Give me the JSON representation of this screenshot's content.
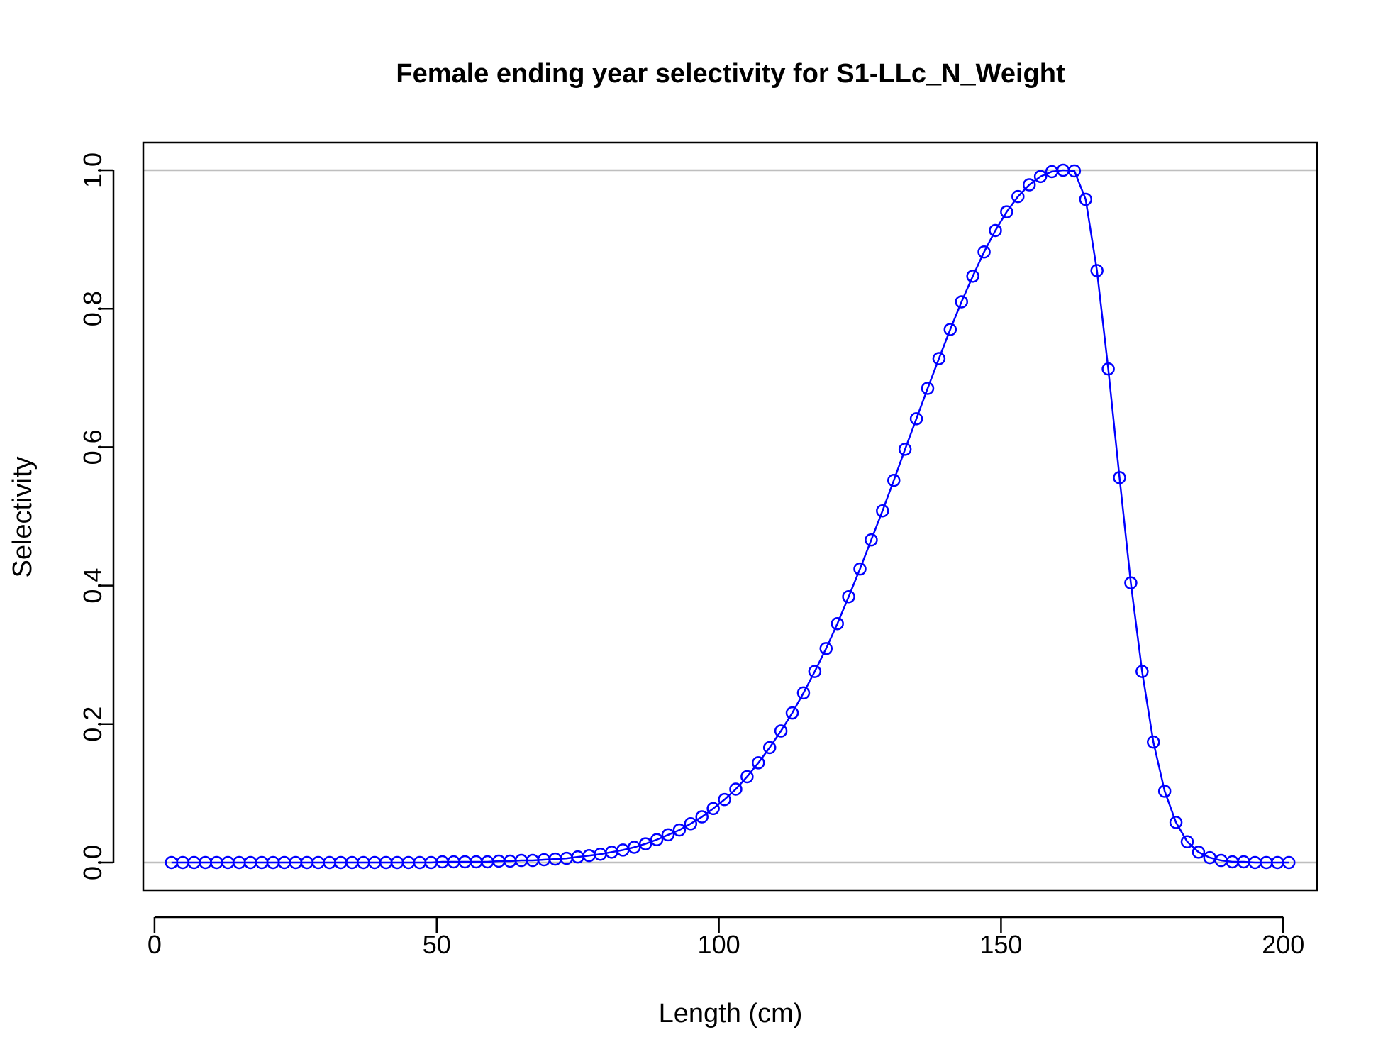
{
  "chart_data": {
    "type": "line",
    "title": "Female ending year selectivity for S1-LLc_N_Weight",
    "xlabel": "Length (cm)",
    "ylabel": "Selectivity",
    "xlim": [
      -2,
      206
    ],
    "ylim": [
      -0.04,
      1.04
    ],
    "xticks": [
      "0",
      "50",
      "100",
      "150",
      "200"
    ],
    "xtick_values": [
      0,
      50,
      100,
      150,
      200
    ],
    "yticks": [
      "0.0",
      "0.2",
      "0.4",
      "0.6",
      "0.8",
      "1.0"
    ],
    "ytick_values": [
      0,
      0.2,
      0.4,
      0.6,
      0.8,
      1.0
    ],
    "reference_lines": [
      0,
      1
    ],
    "line_color": "#0000ff",
    "reference_line_color": "#bebebe",
    "marker": "open-circle",
    "grid": false,
    "series": [
      {
        "x": [
          3,
          5,
          7,
          9,
          11,
          13,
          15,
          17,
          19,
          21,
          23,
          25,
          27,
          29,
          31,
          33,
          35,
          37,
          39,
          41,
          43,
          45,
          47,
          49,
          51,
          53,
          55,
          57,
          59,
          61,
          63,
          65,
          67,
          69,
          71,
          73,
          75,
          77,
          79,
          81,
          83,
          85,
          87,
          89,
          91,
          93,
          95,
          97,
          99,
          101,
          103,
          105,
          107,
          109,
          111,
          113,
          115,
          117,
          119,
          121,
          123,
          125,
          127,
          129,
          131,
          133,
          135,
          137,
          139,
          141,
          143,
          145,
          147,
          149,
          151,
          153,
          155,
          157,
          159,
          161,
          163,
          165,
          167,
          169,
          171,
          173,
          175,
          177,
          179,
          181,
          183,
          185,
          187,
          189,
          191,
          193,
          195,
          197,
          199,
          201
        ],
        "y": [
          0,
          0,
          0,
          0,
          0,
          0,
          0,
          0,
          0,
          0,
          0,
          0,
          0,
          0,
          0,
          0,
          0,
          0,
          0,
          0,
          0,
          0,
          0,
          0,
          0.001,
          0.001,
          0.001,
          0.001,
          0.001,
          0.002,
          0.002,
          0.003,
          0.003,
          0.004,
          0.005,
          0.006,
          0.008,
          0.01,
          0.012,
          0.015,
          0.018,
          0.022,
          0.027,
          0.033,
          0.04,
          0.047,
          0.056,
          0.066,
          0.078,
          0.091,
          0.106,
          0.124,
          0.144,
          0.166,
          0.19,
          0.216,
          0.245,
          0.276,
          0.309,
          0.345,
          0.384,
          0.424,
          0.466,
          0.508,
          0.552,
          0.597,
          0.641,
          0.685,
          0.728,
          0.77,
          0.81,
          0.847,
          0.882,
          0.913,
          0.94,
          0.962,
          0.979,
          0.991,
          0.998,
          1.0,
          0.999,
          0.958,
          0.855,
          0.713,
          0.556,
          0.404,
          0.276,
          0.174,
          0.103,
          0.058,
          0.03,
          0.015,
          0.007,
          0.003,
          0.001,
          0.001,
          0,
          0,
          0,
          0
        ]
      }
    ]
  }
}
